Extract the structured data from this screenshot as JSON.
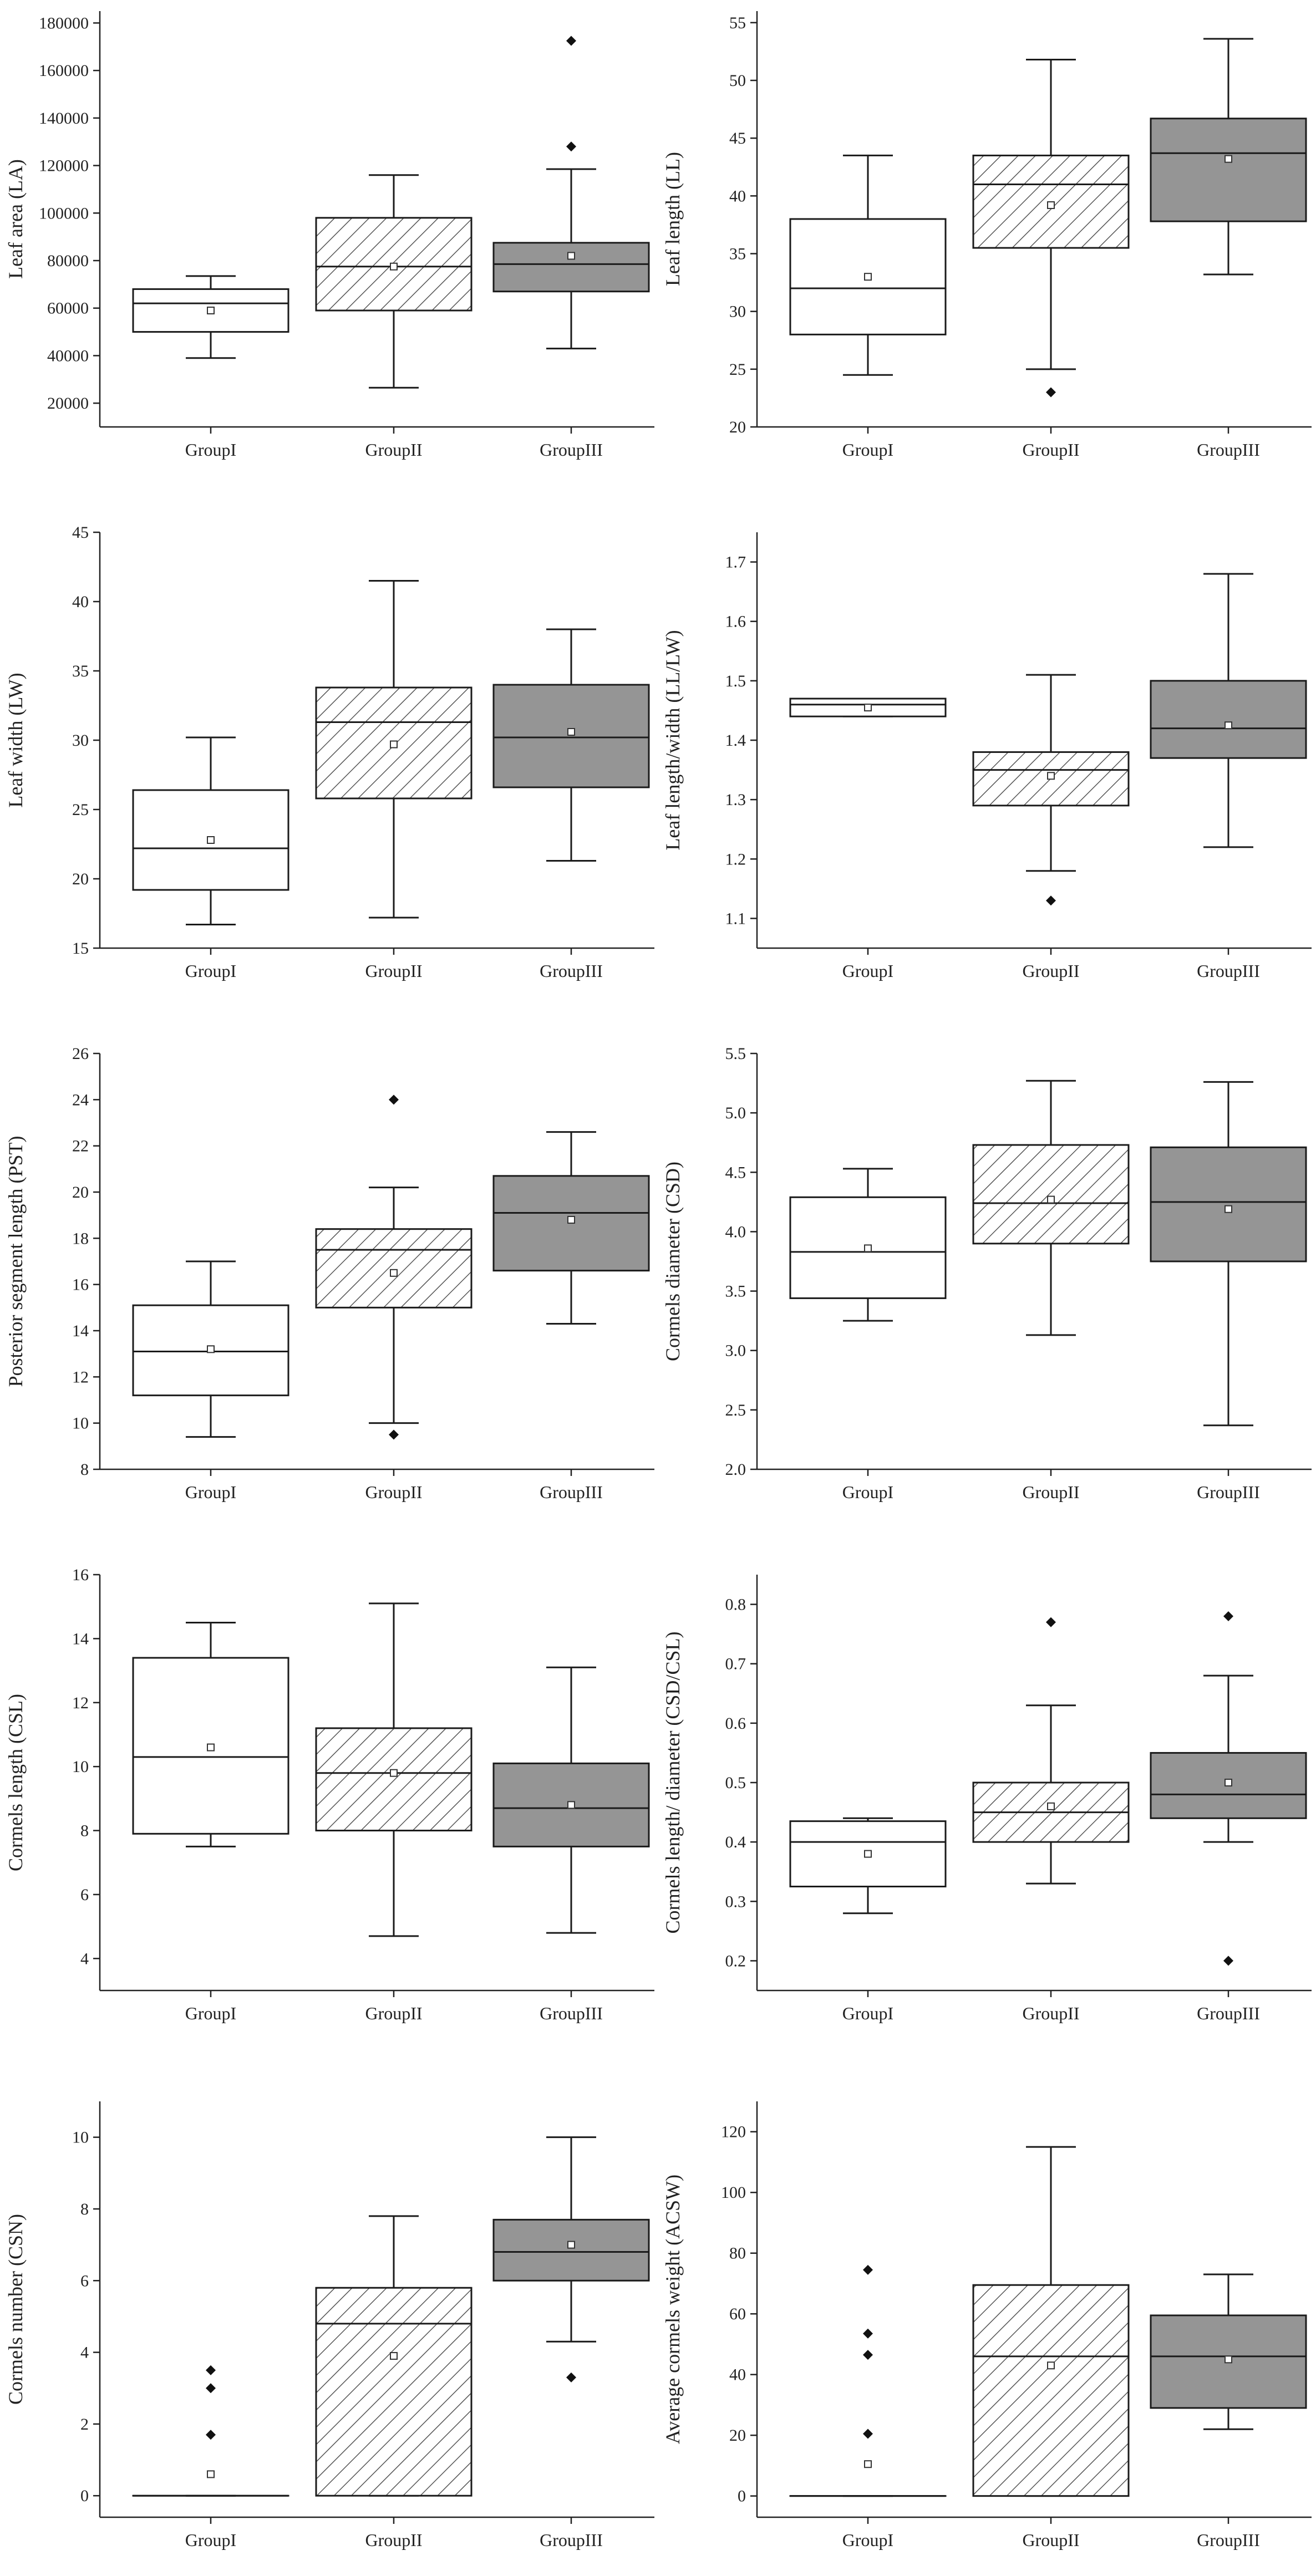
{
  "colors": {
    "groupI": "#ffffff",
    "groupII_hatch": "#555555",
    "groupIII": "#959595",
    "line": "#1a1a1a"
  },
  "chart_data": [
    {
      "type": "box",
      "ylabel": "Leaf area (LA)",
      "categories": [
        "GroupI",
        "GroupII",
        "GroupIII"
      ],
      "ylim": [
        10000,
        185000
      ],
      "yticks": [
        20000,
        40000,
        60000,
        80000,
        100000,
        120000,
        140000,
        160000,
        180000
      ],
      "boxes": [
        {
          "min": 39000,
          "q1": 50000,
          "median": 62000,
          "q3": 68000,
          "max": 73500,
          "mean": 59000,
          "outliers": []
        },
        {
          "min": 26500,
          "q1": 59000,
          "median": 77500,
          "q3": 98000,
          "max": 116000,
          "mean": 77500,
          "outliers": []
        },
        {
          "min": 43000,
          "q1": 67000,
          "median": 78500,
          "q3": 87500,
          "max": 118500,
          "mean": 82000,
          "outliers": [
            128000,
            172500
          ]
        }
      ]
    },
    {
      "type": "box",
      "ylabel": "Leaf length (LL)",
      "categories": [
        "GroupI",
        "GroupII",
        "GroupIII"
      ],
      "ylim": [
        20,
        56
      ],
      "yticks": [
        20,
        25,
        30,
        35,
        40,
        45,
        50,
        55
      ],
      "boxes": [
        {
          "min": 24.5,
          "q1": 28,
          "median": 32,
          "q3": 38,
          "max": 43.5,
          "mean": 33,
          "outliers": []
        },
        {
          "min": 25,
          "q1": 35.5,
          "median": 41,
          "q3": 43.5,
          "max": 51.8,
          "mean": 39.2,
          "outliers": [
            23
          ]
        },
        {
          "min": 33.2,
          "q1": 37.8,
          "median": 43.7,
          "q3": 46.7,
          "max": 53.6,
          "mean": 43.2,
          "outliers": []
        }
      ]
    },
    {
      "type": "box",
      "ylabel": "Leaf width (LW)",
      "categories": [
        "GroupI",
        "GroupII",
        "GroupIII"
      ],
      "ylim": [
        15,
        45
      ],
      "yticks": [
        15,
        20,
        25,
        30,
        35,
        40,
        45
      ],
      "boxes": [
        {
          "min": 16.7,
          "q1": 19.2,
          "median": 22.2,
          "q3": 26.4,
          "max": 30.2,
          "mean": 22.8,
          "outliers": []
        },
        {
          "min": 17.2,
          "q1": 25.8,
          "median": 31.3,
          "q3": 33.8,
          "max": 41.5,
          "mean": 29.7,
          "outliers": []
        },
        {
          "min": 21.3,
          "q1": 26.6,
          "median": 30.2,
          "q3": 34,
          "max": 38,
          "mean": 30.6,
          "outliers": []
        }
      ]
    },
    {
      "type": "box",
      "ylabel": "Leaf length/width (LL/LW)",
      "categories": [
        "GroupI",
        "GroupII",
        "GroupIII"
      ],
      "ylim": [
        1.05,
        1.75
      ],
      "yticks": [
        1.1,
        1.2,
        1.3,
        1.4,
        1.5,
        1.6,
        1.7
      ],
      "boxes": [
        {
          "min": 1.44,
          "q1": 1.44,
          "median": 1.46,
          "q3": 1.47,
          "max": 1.47,
          "mean": 1.455,
          "outliers": []
        },
        {
          "min": 1.18,
          "q1": 1.29,
          "median": 1.35,
          "q3": 1.38,
          "max": 1.51,
          "mean": 1.34,
          "outliers": [
            1.13
          ]
        },
        {
          "min": 1.22,
          "q1": 1.37,
          "median": 1.42,
          "q3": 1.5,
          "max": 1.68,
          "mean": 1.425,
          "outliers": []
        }
      ]
    },
    {
      "type": "box",
      "ylabel": "Posterior segment length (PST)",
      "categories": [
        "GroupI",
        "GroupII",
        "GroupIII"
      ],
      "ylim": [
        8,
        26
      ],
      "yticks": [
        8,
        10,
        12,
        14,
        16,
        18,
        20,
        22,
        24,
        26
      ],
      "boxes": [
        {
          "min": 9.4,
          "q1": 11.2,
          "median": 13.1,
          "q3": 15.1,
          "max": 17,
          "mean": 13.2,
          "outliers": []
        },
        {
          "min": 10,
          "q1": 15,
          "median": 17.5,
          "q3": 18.4,
          "max": 20.2,
          "mean": 16.5,
          "outliers": [
            9.5,
            24
          ]
        },
        {
          "min": 14.3,
          "q1": 16.6,
          "median": 19.1,
          "q3": 20.7,
          "max": 22.6,
          "mean": 18.8,
          "outliers": []
        }
      ]
    },
    {
      "type": "box",
      "ylabel": "Cormels diameter (CSD)",
      "categories": [
        "GroupI",
        "GroupII",
        "GroupIII"
      ],
      "ylim": [
        2.0,
        5.5
      ],
      "yticks": [
        2.0,
        2.5,
        3.0,
        3.5,
        4.0,
        4.5,
        5.0,
        5.5
      ],
      "boxes": [
        {
          "min": 3.25,
          "q1": 3.44,
          "median": 3.83,
          "q3": 4.29,
          "max": 4.53,
          "mean": 3.86,
          "outliers": []
        },
        {
          "min": 3.13,
          "q1": 3.9,
          "median": 4.24,
          "q3": 4.73,
          "max": 5.27,
          "mean": 4.27,
          "outliers": []
        },
        {
          "min": 2.37,
          "q1": 3.75,
          "median": 4.25,
          "q3": 4.71,
          "max": 5.26,
          "mean": 4.19,
          "outliers": []
        }
      ]
    },
    {
      "type": "box",
      "ylabel": "Cormels length (CSL)",
      "categories": [
        "GroupI",
        "GroupII",
        "GroupIII"
      ],
      "ylim": [
        3,
        16
      ],
      "yticks": [
        4,
        6,
        8,
        10,
        12,
        14,
        16
      ],
      "boxes": [
        {
          "min": 7.5,
          "q1": 7.9,
          "median": 10.3,
          "q3": 13.4,
          "max": 14.5,
          "mean": 10.6,
          "outliers": []
        },
        {
          "min": 4.7,
          "q1": 8,
          "median": 9.8,
          "q3": 11.2,
          "max": 15.1,
          "mean": 9.8,
          "outliers": []
        },
        {
          "min": 4.8,
          "q1": 7.5,
          "median": 8.7,
          "q3": 10.1,
          "max": 13.1,
          "mean": 8.8,
          "outliers": []
        }
      ]
    },
    {
      "type": "box",
      "ylabel": "Cormels length/ diameter (CSD/CSL)",
      "categories": [
        "GroupI",
        "GroupII",
        "GroupIII"
      ],
      "ylim": [
        0.15,
        0.85
      ],
      "yticks": [
        0.2,
        0.3,
        0.4,
        0.5,
        0.6,
        0.7,
        0.8
      ],
      "boxes": [
        {
          "min": 0.28,
          "q1": 0.325,
          "median": 0.4,
          "q3": 0.435,
          "max": 0.44,
          "mean": 0.38,
          "outliers": []
        },
        {
          "min": 0.33,
          "q1": 0.4,
          "median": 0.45,
          "q3": 0.5,
          "max": 0.63,
          "mean": 0.46,
          "outliers": [
            0.77
          ]
        },
        {
          "min": 0.4,
          "q1": 0.44,
          "median": 0.48,
          "q3": 0.55,
          "max": 0.68,
          "mean": 0.5,
          "outliers": [
            0.2,
            0.78
          ]
        }
      ]
    },
    {
      "type": "box",
      "ylabel": "Cormels number (CSN)",
      "categories": [
        "GroupI",
        "GroupII",
        "GroupIII"
      ],
      "ylim": [
        -0.6,
        11
      ],
      "yticks": [
        0,
        2,
        4,
        6,
        8,
        10
      ],
      "boxes": [
        {
          "min": 0,
          "q1": 0,
          "median": 0,
          "q3": 0,
          "max": 0,
          "mean": 0.6,
          "outliers": [
            1.7,
            3,
            3.5
          ]
        },
        {
          "min": 0,
          "q1": 0,
          "median": 4.8,
          "q3": 5.8,
          "max": 7.8,
          "mean": 3.9,
          "outliers": []
        },
        {
          "min": 4.3,
          "q1": 6,
          "median": 6.8,
          "q3": 7.7,
          "max": 10,
          "mean": 7,
          "outliers": [
            3.3
          ]
        }
      ]
    },
    {
      "type": "box",
      "ylabel": "Average cormels weight (ACSW)",
      "categories": [
        "GroupI",
        "GroupII",
        "GroupIII"
      ],
      "ylim": [
        -7,
        130
      ],
      "yticks": [
        0,
        20,
        40,
        60,
        80,
        100,
        120
      ],
      "boxes": [
        {
          "min": 0,
          "q1": 0,
          "median": 0,
          "q3": 0,
          "max": 0,
          "mean": 10.5,
          "outliers": [
            20.5,
            46.5,
            53.5,
            74.5
          ]
        },
        {
          "min": 0,
          "q1": 0,
          "median": 46,
          "q3": 69.5,
          "max": 115,
          "mean": 43,
          "outliers": []
        },
        {
          "min": 22,
          "q1": 29,
          "median": 46,
          "q3": 59.5,
          "max": 73,
          "mean": 45,
          "outliers": []
        }
      ]
    }
  ]
}
